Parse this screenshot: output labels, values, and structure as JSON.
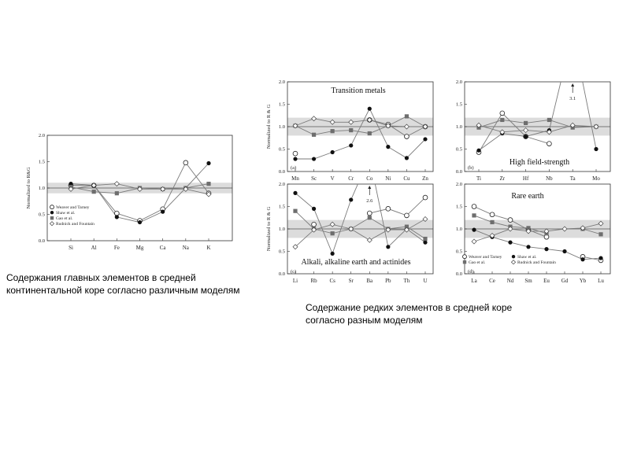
{
  "captions": {
    "major": [
      "Содержания главных элементов в средней",
      "континентальной коре согласно различным моделям"
    ],
    "rare": [
      "Содержание редких элементов в средней коре",
      "согласно разным моделям"
    ]
  },
  "chart_data": [
    {
      "type": "line",
      "id": "major",
      "title": "",
      "tag": "",
      "ylabel": "Normalized to R&G",
      "ylim": [
        0.0,
        2.0
      ],
      "yticks": [
        "0.0",
        "0.5",
        "1.0",
        "1.5",
        "2.0"
      ],
      "categories": [
        "Si",
        "Al",
        "Fe",
        "Mg",
        "Ca",
        "Na",
        "K"
      ],
      "band": [
        0.9,
        1.1
      ],
      "series": [
        {
          "name": "Weaver and Tarney",
          "marker": "open-circle",
          "values": [
            1.05,
            1.05,
            0.52,
            0.38,
            0.6,
            1.48,
            0.9
          ]
        },
        {
          "name": "Shaw et al.",
          "marker": "filled-circle",
          "values": [
            1.08,
            1.05,
            0.45,
            0.35,
            0.55,
            1.0,
            1.47
          ]
        },
        {
          "name": "Gao et al.",
          "marker": "filled-square",
          "values": [
            1.02,
            0.93,
            0.9,
            1.0,
            0.98,
            1.0,
            1.08
          ]
        },
        {
          "name": "Rudnick and Fountain",
          "marker": "open-diamond",
          "values": [
            0.98,
            1.05,
            1.08,
            0.98,
            0.98,
            0.98,
            0.88
          ]
        }
      ]
    },
    {
      "type": "line",
      "id": "transition",
      "title": "Transition metals",
      "tag": "(a)",
      "ylabel": "Normalized to R & G",
      "ylim": [
        0.0,
        2.0
      ],
      "yticks": [
        "0.0",
        "0.5",
        "1.0",
        "1.5",
        "2.0"
      ],
      "categories": [
        "Mn",
        "Sc",
        "V",
        "Cr",
        "Co",
        "Ni",
        "Cu",
        "Zn"
      ],
      "band": [
        0.8,
        1.2
      ],
      "series": [
        {
          "name": "Weaver and Tarney",
          "marker": "open-circle",
          "values": [
            0.4,
            null,
            null,
            null,
            1.15,
            1.05,
            0.78,
            1.0
          ]
        },
        {
          "name": "Shaw et al.",
          "marker": "filled-circle",
          "values": [
            0.28,
            0.28,
            0.43,
            0.58,
            1.4,
            0.55,
            0.3,
            0.72
          ]
        },
        {
          "name": "Gao et al.",
          "marker": "filled-square",
          "values": [
            1.02,
            0.82,
            0.9,
            0.92,
            0.85,
            1.02,
            1.23,
            1.0
          ]
        },
        {
          "name": "Rudnick and Fountain",
          "marker": "open-diamond",
          "values": [
            1.02,
            1.18,
            1.1,
            1.1,
            1.15,
            1.02,
            1.0,
            1.0
          ]
        }
      ]
    },
    {
      "type": "line",
      "id": "hfse",
      "title": "High field-strength",
      "tag": "(b)",
      "ylabel": "",
      "ylim": [
        0.0,
        2.0
      ],
      "yticks": [
        "0.0",
        "0.5",
        "1.0",
        "1.5",
        "2.0"
      ],
      "categories": [
        "Ti",
        "Zr",
        "Hf",
        "Nb",
        "Ta",
        "Mo"
      ],
      "band": [
        0.8,
        1.2
      ],
      "annotation": "3.1",
      "series": [
        {
          "name": "Weaver and Tarney",
          "marker": "open-circle",
          "values": [
            0.43,
            1.3,
            0.78,
            0.62,
            null,
            null
          ]
        },
        {
          "name": "Shaw et al.",
          "marker": "filled-circle",
          "values": [
            0.47,
            0.85,
            0.78,
            0.92,
            3.1,
            0.5
          ]
        },
        {
          "name": "Gao et al.",
          "marker": "filled-square",
          "values": [
            0.98,
            1.15,
            1.08,
            1.15,
            0.98,
            1.0
          ]
        },
        {
          "name": "Rudnick and Fountain",
          "marker": "open-diamond",
          "values": [
            1.03,
            0.88,
            0.92,
            0.88,
            1.03,
            1.0
          ]
        }
      ]
    },
    {
      "type": "line",
      "id": "alkali",
      "title": "Alkali, alkaline earth and actinides",
      "tag": "(c)",
      "ylabel": "Normalized to R & G",
      "ylim": [
        0.0,
        2.0
      ],
      "yticks": [
        "0.0",
        "0.5",
        "1.0",
        "1.5",
        "2.0"
      ],
      "categories": [
        "Li",
        "Rb",
        "Cs",
        "Sr",
        "Ba",
        "Pb",
        "Th",
        "U"
      ],
      "band": [
        0.8,
        1.2
      ],
      "annotation": "2.6",
      "series": [
        {
          "name": "Weaver and Tarney",
          "marker": "open-circle",
          "values": [
            null,
            1.1,
            null,
            null,
            1.35,
            1.45,
            1.3,
            1.7
          ]
        },
        {
          "name": "Shaw et al.",
          "marker": "filled-circle",
          "values": [
            1.8,
            1.45,
            0.45,
            1.65,
            2.6,
            0.6,
            1.0,
            0.7
          ]
        },
        {
          "name": "Gao et al.",
          "marker": "filled-square",
          "values": [
            1.4,
            1.0,
            0.9,
            1.0,
            1.25,
            1.0,
            1.05,
            0.78
          ]
        },
        {
          "name": "Rudnick and Fountain",
          "marker": "open-diamond",
          "values": [
            0.6,
            0.98,
            1.1,
            1.0,
            0.75,
            0.98,
            0.98,
            1.22
          ]
        }
      ]
    },
    {
      "type": "line",
      "id": "ree",
      "title": "Rare earth",
      "tag": "(d)",
      "ylabel": "",
      "ylim": [
        0.0,
        2.0
      ],
      "yticks": [
        "0.0",
        "0.5",
        "1.0",
        "1.5",
        "2.0"
      ],
      "categories": [
        "La",
        "Ce",
        "Nd",
        "Sm",
        "Eu",
        "Gd",
        "Yb",
        "Lu"
      ],
      "band": [
        0.8,
        1.2
      ],
      "series": [
        {
          "name": "Weaver and Tarney",
          "marker": "open-circle",
          "values": [
            1.5,
            1.32,
            1.2,
            0.98,
            0.82,
            null,
            0.38,
            0.3
          ]
        },
        {
          "name": "Shaw et al.",
          "marker": "filled-circle",
          "values": [
            0.98,
            0.82,
            0.7,
            0.6,
            0.55,
            0.5,
            0.32,
            0.35
          ]
        },
        {
          "name": "Gao et al.",
          "marker": "filled-square",
          "values": [
            1.3,
            1.15,
            1.05,
            1.02,
            0.9,
            null,
            1.0,
            0.88
          ]
        },
        {
          "name": "Rudnick and Fountain",
          "marker": "open-diamond",
          "values": [
            0.72,
            0.85,
            1.0,
            0.95,
            0.95,
            1.0,
            1.02,
            1.12
          ]
        }
      ]
    }
  ]
}
